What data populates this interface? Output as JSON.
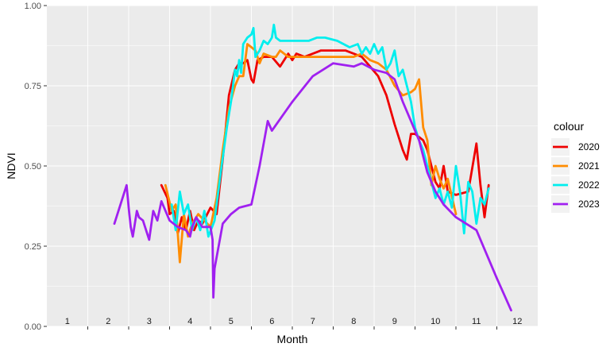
{
  "chart_data": {
    "type": "line",
    "title": "",
    "xlabel": "Month",
    "ylabel": "NDVI",
    "xlim": [
      0.5,
      12.5
    ],
    "ylim": [
      0,
      1
    ],
    "yticks": [
      0,
      0.25,
      0.5,
      0.75,
      1
    ],
    "ytick_labels": [
      "0.00",
      "0.25",
      "0.50",
      "0.75",
      "1.00"
    ],
    "month_labels": [
      "1",
      "2",
      "3",
      "4",
      "5",
      "6",
      "7",
      "8",
      "9",
      "10",
      "11",
      "12"
    ],
    "grid": true,
    "legend": {
      "title": "colour",
      "position": "right"
    },
    "series": [
      {
        "name": "2020",
        "color": "#ee0000",
        "x": [
          3.3,
          3.45,
          3.5,
          3.6,
          3.7,
          3.8,
          3.9,
          4.0,
          4.1,
          4.2,
          4.3,
          4.5,
          4.65,
          4.8,
          4.95,
          5.1,
          5.2,
          5.3,
          5.4,
          5.5,
          5.55,
          5.65,
          5.8,
          6.0,
          6.2,
          6.4,
          6.5,
          6.6,
          6.8,
          7.0,
          7.2,
          7.5,
          7.8,
          8.0,
          8.2,
          8.4,
          8.6,
          8.8,
          9.0,
          9.2,
          9.3,
          9.4,
          9.5,
          9.7,
          9.8,
          9.9,
          10.0,
          10.1,
          10.2,
          10.3,
          10.5,
          10.8,
          11.0,
          11.1,
          11.2,
          11.3
        ],
        "y": [
          0.44,
          0.4,
          0.35,
          0.36,
          0.29,
          0.34,
          0.3,
          0.36,
          0.3,
          0.33,
          0.32,
          0.37,
          0.35,
          0.52,
          0.72,
          0.8,
          0.82,
          0.82,
          0.83,
          0.77,
          0.76,
          0.83,
          0.84,
          0.84,
          0.81,
          0.85,
          0.83,
          0.85,
          0.84,
          0.85,
          0.86,
          0.86,
          0.86,
          0.85,
          0.84,
          0.81,
          0.78,
          0.72,
          0.63,
          0.55,
          0.52,
          0.6,
          0.6,
          0.58,
          0.55,
          0.5,
          0.45,
          0.43,
          0.5,
          0.42,
          0.41,
          0.42,
          0.57,
          0.44,
          0.34,
          0.44
        ]
      },
      {
        "name": "2021",
        "color": "#ff8c00",
        "x": [
          3.4,
          3.55,
          3.65,
          3.75,
          3.85,
          3.95,
          4.05,
          4.2,
          4.35,
          4.5,
          4.65,
          4.8,
          4.95,
          5.1,
          5.2,
          5.3,
          5.4,
          5.5,
          5.6,
          5.7,
          5.8,
          6.0,
          6.1,
          6.2,
          6.4,
          6.6,
          6.8,
          7.0,
          7.3,
          7.6,
          7.9,
          8.0,
          8.2,
          8.4,
          8.6,
          8.8,
          9.0,
          9.2,
          9.4,
          9.5,
          9.6,
          9.7,
          9.8,
          9.9,
          10.0,
          10.1,
          10.2,
          10.3,
          10.5
        ],
        "y": [
          0.44,
          0.36,
          0.38,
          0.2,
          0.35,
          0.28,
          0.32,
          0.35,
          0.33,
          0.31,
          0.4,
          0.55,
          0.68,
          0.75,
          0.78,
          0.78,
          0.88,
          0.87,
          0.86,
          0.82,
          0.85,
          0.84,
          0.84,
          0.86,
          0.84,
          0.84,
          0.84,
          0.84,
          0.84,
          0.84,
          0.84,
          0.84,
          0.85,
          0.83,
          0.82,
          0.8,
          0.75,
          0.72,
          0.73,
          0.74,
          0.77,
          0.62,
          0.58,
          0.44,
          0.5,
          0.46,
          0.43,
          0.46,
          0.35
        ]
      },
      {
        "name": "2022",
        "color": "#00eeee",
        "x": [
          3.55,
          3.65,
          3.75,
          3.85,
          3.95,
          4.05,
          4.15,
          4.25,
          4.35,
          4.45,
          4.6,
          4.75,
          4.9,
          5.0,
          5.1,
          5.15,
          5.2,
          5.25,
          5.3,
          5.4,
          5.5,
          5.55,
          5.6,
          5.7,
          5.8,
          5.9,
          6.0,
          6.05,
          6.1,
          6.2,
          6.4,
          6.5,
          6.7,
          6.9,
          7.1,
          7.3,
          7.6,
          7.9,
          8.1,
          8.2,
          8.3,
          8.4,
          8.5,
          8.6,
          8.7,
          8.8,
          8.9,
          9.0,
          9.1,
          9.2,
          9.3,
          9.4,
          9.5,
          9.6,
          9.7,
          9.8,
          9.9,
          10.0,
          10.1,
          10.2,
          10.3,
          10.4,
          10.5,
          10.6,
          10.7,
          10.8,
          10.9,
          11.0,
          11.1,
          11.2,
          11.3
        ],
        "y": [
          0.38,
          0.3,
          0.42,
          0.35,
          0.38,
          0.3,
          0.34,
          0.3,
          0.36,
          0.28,
          0.33,
          0.48,
          0.62,
          0.7,
          0.8,
          0.78,
          0.83,
          0.79,
          0.88,
          0.9,
          0.91,
          0.93,
          0.84,
          0.86,
          0.89,
          0.88,
          0.9,
          0.94,
          0.9,
          0.89,
          0.89,
          0.89,
          0.89,
          0.89,
          0.9,
          0.9,
          0.89,
          0.87,
          0.88,
          0.85,
          0.87,
          0.85,
          0.88,
          0.85,
          0.87,
          0.8,
          0.82,
          0.86,
          0.78,
          0.8,
          0.75,
          0.7,
          0.62,
          0.58,
          0.55,
          0.5,
          0.45,
          0.4,
          0.43,
          0.38,
          0.42,
          0.37,
          0.5,
          0.42,
          0.29,
          0.45,
          0.42,
          0.32,
          0.4,
          0.38,
          0.43
        ]
      },
      {
        "name": "2023",
        "color": "#a020f0",
        "x": [
          2.15,
          2.45,
          2.5,
          2.55,
          2.6,
          2.7,
          2.75,
          2.85,
          3.0,
          3.1,
          3.2,
          3.3,
          3.5,
          3.7,
          3.9,
          4.0,
          4.05,
          4.15,
          4.3,
          4.5,
          4.55,
          4.57,
          4.6,
          4.8,
          5.0,
          5.2,
          5.5,
          5.7,
          5.9,
          6.0,
          6.5,
          7.0,
          7.5,
          8.0,
          8.2,
          8.5,
          8.8,
          9.0,
          9.2,
          9.4,
          9.6,
          9.8,
          10.0,
          10.2,
          10.5,
          11.0,
          11.5,
          11.85
        ],
        "y": [
          0.32,
          0.44,
          0.37,
          0.31,
          0.28,
          0.36,
          0.34,
          0.33,
          0.27,
          0.36,
          0.33,
          0.39,
          0.33,
          0.31,
          0.3,
          0.28,
          0.31,
          0.34,
          0.31,
          0.31,
          0.27,
          0.09,
          0.18,
          0.32,
          0.35,
          0.37,
          0.38,
          0.5,
          0.64,
          0.61,
          0.7,
          0.78,
          0.82,
          0.81,
          0.82,
          0.8,
          0.79,
          0.77,
          0.7,
          0.64,
          0.58,
          0.48,
          0.42,
          0.38,
          0.34,
          0.3,
          0.15,
          0.05
        ]
      }
    ]
  }
}
